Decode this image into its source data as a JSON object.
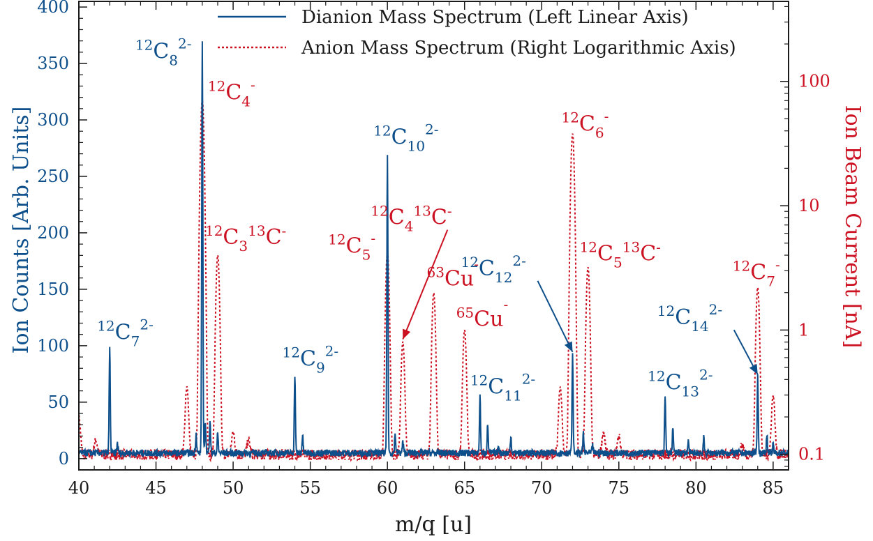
{
  "colors": {
    "dianion": "#0d4f8b",
    "anion": "#cc1122",
    "axis": "#1a1a1a"
  },
  "chart_data": {
    "type": "line",
    "xlabel": "m/q [u]",
    "ylabel_left": "Ion Counts [Arb. Units]",
    "ylabel_right": "Ion Beam Current [nA]",
    "xlim": [
      40,
      86
    ],
    "ylim_left": [
      -10,
      405
    ],
    "ylim_right": [
      0.075,
      440
    ],
    "right_scale": "log",
    "x_ticks": [
      "40",
      "45",
      "50",
      "55",
      "60",
      "65",
      "70",
      "75",
      "80",
      "85"
    ],
    "y_ticks_left": [
      "0",
      "50",
      "100",
      "150",
      "200",
      "250",
      "300",
      "350",
      "400"
    ],
    "y_ticks_right": [
      "0.1",
      "1",
      "10",
      "100"
    ],
    "legend": {
      "placement": "top-right",
      "entries": [
        {
          "label": "Dianion Mass Spectrum (Left Linear Axis)",
          "style": "solid"
        },
        {
          "label": "Anion Mass Spectrum (Right Logarithmic Axis)",
          "style": "dotted"
        }
      ]
    },
    "series": [
      {
        "name": "Dianion Mass Spectrum (Left Linear Axis)",
        "axis": "left",
        "baseline": 5,
        "peaks": [
          {
            "x": 42.0,
            "y": 97
          },
          {
            "x": 42.5,
            "y": 14
          },
          {
            "x": 47.6,
            "y": 22
          },
          {
            "x": 48.0,
            "y": 372
          },
          {
            "x": 48.2,
            "y": 32
          },
          {
            "x": 48.5,
            "y": 35
          },
          {
            "x": 49.0,
            "y": 22
          },
          {
            "x": 54.0,
            "y": 75
          },
          {
            "x": 54.5,
            "y": 20
          },
          {
            "x": 60.0,
            "y": 270
          },
          {
            "x": 60.5,
            "y": 22
          },
          {
            "x": 61.0,
            "y": 15
          },
          {
            "x": 66.0,
            "y": 54
          },
          {
            "x": 66.5,
            "y": 30
          },
          {
            "x": 67.2,
            "y": 12
          },
          {
            "x": 68.0,
            "y": 20
          },
          {
            "x": 72.0,
            "y": 92
          },
          {
            "x": 72.7,
            "y": 22
          },
          {
            "x": 73.3,
            "y": 12
          },
          {
            "x": 78.0,
            "y": 54
          },
          {
            "x": 78.5,
            "y": 28
          },
          {
            "x": 79.5,
            "y": 15
          },
          {
            "x": 80.5,
            "y": 18
          },
          {
            "x": 84.0,
            "y": 72
          },
          {
            "x": 84.6,
            "y": 22
          },
          {
            "x": 85.0,
            "y": 12
          }
        ]
      },
      {
        "name": "Anion Mass Spectrum (Right Logarithmic Axis)",
        "axis": "right",
        "baseline": 0.1,
        "peaks": [
          {
            "x": 40.0,
            "y": 0.2
          },
          {
            "x": 41.1,
            "y": 0.13
          },
          {
            "x": 47.0,
            "y": 0.35
          },
          {
            "x": 48.0,
            "y": 70
          },
          {
            "x": 49.0,
            "y": 4.0
          },
          {
            "x": 50.0,
            "y": 0.15
          },
          {
            "x": 51.0,
            "y": 0.13
          },
          {
            "x": 60.0,
            "y": 4.2
          },
          {
            "x": 61.0,
            "y": 0.8
          },
          {
            "x": 63.0,
            "y": 2.0
          },
          {
            "x": 65.0,
            "y": 1.0
          },
          {
            "x": 71.2,
            "y": 0.35
          },
          {
            "x": 72.0,
            "y": 38
          },
          {
            "x": 73.0,
            "y": 3.2
          },
          {
            "x": 74.0,
            "y": 0.15
          },
          {
            "x": 75.0,
            "y": 0.14
          },
          {
            "x": 83.0,
            "y": 0.12
          },
          {
            "x": 84.0,
            "y": 2.2
          },
          {
            "x": 85.0,
            "y": 0.3
          }
        ]
      }
    ],
    "annotations": [
      {
        "x": 42.0,
        "y": 97,
        "axis": "left",
        "color": "dianion",
        "sup": "12",
        "base": "C",
        "sub": "7",
        "charge": "2-",
        "dx": -18,
        "dy": -14,
        "anchor": "start"
      },
      {
        "x": 48.0,
        "y": 372,
        "axis": "left",
        "color": "dianion",
        "sup": "12",
        "base": "C",
        "sub": "8",
        "charge": "2-",
        "dx": -96,
        "dy": 28,
        "anchor": "start"
      },
      {
        "x": 54.0,
        "y": 75,
        "axis": "left",
        "color": "dianion",
        "sup": "12",
        "base": "C",
        "sub": "9",
        "charge": "2-",
        "dx": -18,
        "dy": -12,
        "anchor": "start"
      },
      {
        "x": 60.0,
        "y": 270,
        "axis": "left",
        "color": "dianion",
        "sup": "12",
        "base": "C",
        "sub": "10",
        "charge": "2-",
        "dx": -20,
        "dy": -14,
        "anchor": "start"
      },
      {
        "x": 66.0,
        "y": 54,
        "axis": "left",
        "color": "dianion",
        "sup": "12",
        "base": "C",
        "sub": "11",
        "charge": "2-",
        "dx": -14,
        "dy": -6,
        "anchor": "start"
      },
      {
        "x": 72.0,
        "y": 92,
        "axis": "left",
        "color": "dianion",
        "sup": "12",
        "base": "C",
        "sub": "12",
        "charge": "2-",
        "dx": -120,
        "dy": -120,
        "anchor": "start",
        "arrow": true
      },
      {
        "x": 78.0,
        "y": 54,
        "axis": "left",
        "color": "dianion",
        "sup": "12",
        "base": "C",
        "sub": "13",
        "charge": "2-",
        "dx": -25,
        "dy": -12,
        "anchor": "start"
      },
      {
        "x": 84.0,
        "y": 72,
        "axis": "left",
        "color": "dianion",
        "sup": "12",
        "base": "C",
        "sub": "14",
        "charge": "2-",
        "dx": -104,
        "dy": -82,
        "anchor": "start",
        "arrow": true
      },
      {
        "x": 48.0,
        "y": 70,
        "axis": "right",
        "color": "anion",
        "sup": "12",
        "base": "C",
        "sub": "4",
        "charge": "-",
        "dx": 8,
        "dy": -2,
        "anchor": "start"
      },
      {
        "x": 49.0,
        "y": 4.0,
        "axis": "right",
        "color": "anion",
        "sup": "12",
        "base": "C",
        "sub": "3",
        "sup2": "13",
        "base2": "C",
        "charge": "-",
        "dx": -18,
        "dy": -16,
        "anchor": "start"
      },
      {
        "x": 60.0,
        "y": 4.2,
        "axis": "right",
        "color": "anion",
        "sup": "12",
        "base": "C",
        "sub": "5",
        "charge": "-",
        "dx": -85,
        "dy": 0,
        "anchor": "start"
      },
      {
        "x": 61.0,
        "y": 0.8,
        "axis": "right",
        "color": "anion",
        "sup": "12",
        "base": "C",
        "sub": "4",
        "sup2": "13",
        "base2": "C",
        "charge": "-",
        "dx": -6,
        "dy": -175,
        "anchor": "start",
        "arrow": true
      },
      {
        "x": 63.0,
        "y": 2.0,
        "axis": "right",
        "color": "anion",
        "sup": "63",
        "base": "Cu",
        "sub": "",
        "charge": "-",
        "dx": -10,
        "dy": -10,
        "anchor": "start"
      },
      {
        "x": 65.0,
        "y": 1.0,
        "axis": "right",
        "color": "anion",
        "sup": "65",
        "base": "Cu",
        "sub": "",
        "charge": "-",
        "dx": -12,
        "dy": -6,
        "anchor": "start"
      },
      {
        "x": 72.0,
        "y": 38,
        "axis": "right",
        "color": "anion",
        "sup": "12",
        "base": "C",
        "sub": "6",
        "charge": "-",
        "dx": -16,
        "dy": -4,
        "anchor": "start"
      },
      {
        "x": 73.0,
        "y": 3.2,
        "axis": "right",
        "color": "anion",
        "sup": "12",
        "base": "C",
        "sub": "5",
        "sup2": "13",
        "base2": "C",
        "charge": "-",
        "dx": -12,
        "dy": -10,
        "anchor": "start"
      },
      {
        "x": 84.0,
        "y": 2.2,
        "axis": "right",
        "color": "anion",
        "sup": "12",
        "base": "C",
        "sub": "7",
        "charge": "-",
        "dx": -36,
        "dy": -12,
        "anchor": "start"
      }
    ]
  }
}
